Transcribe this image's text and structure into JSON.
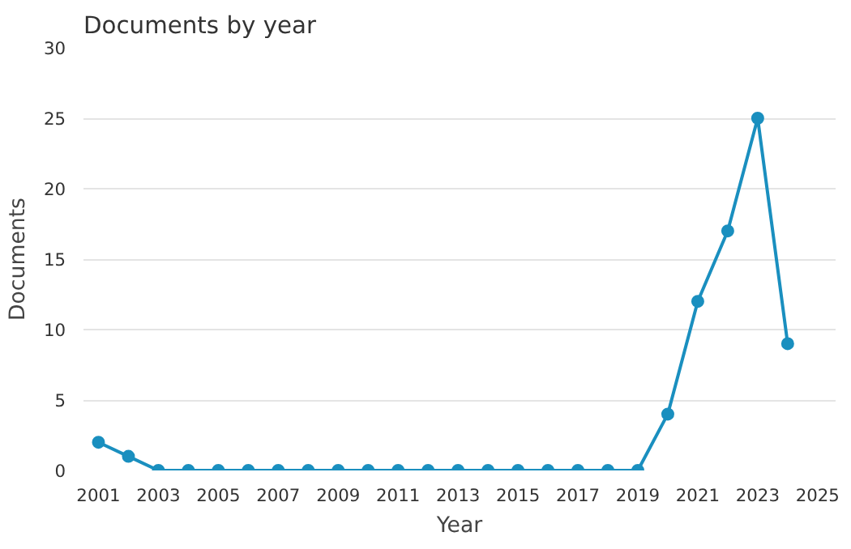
{
  "chart_data": {
    "type": "line",
    "title": "Documents by year",
    "xlabel": "Year",
    "ylabel": "Documents",
    "x": [
      2001,
      2002,
      2003,
      2004,
      2005,
      2006,
      2007,
      2008,
      2009,
      2010,
      2011,
      2012,
      2013,
      2014,
      2015,
      2016,
      2017,
      2018,
      2019,
      2020,
      2021,
      2022,
      2023,
      2024
    ],
    "series": [
      {
        "color": "#1a8fbf",
        "values": [
          2,
          1,
          0,
          0,
          0,
          0,
          0,
          0,
          0,
          0,
          0,
          0,
          0,
          0,
          0,
          0,
          0,
          0,
          0,
          4,
          12,
          17,
          25,
          9
        ]
      }
    ],
    "xlim": [
      2000.5,
      2025.6
    ],
    "xticks": [
      2001,
      2003,
      2005,
      2007,
      2009,
      2011,
      2013,
      2015,
      2017,
      2019,
      2021,
      2023,
      2025
    ],
    "ylim": [
      0,
      30
    ],
    "yticks": [
      0,
      5,
      10,
      15,
      20,
      25,
      30
    ],
    "grid": "y",
    "marker": "circle",
    "line_style": "solid"
  }
}
